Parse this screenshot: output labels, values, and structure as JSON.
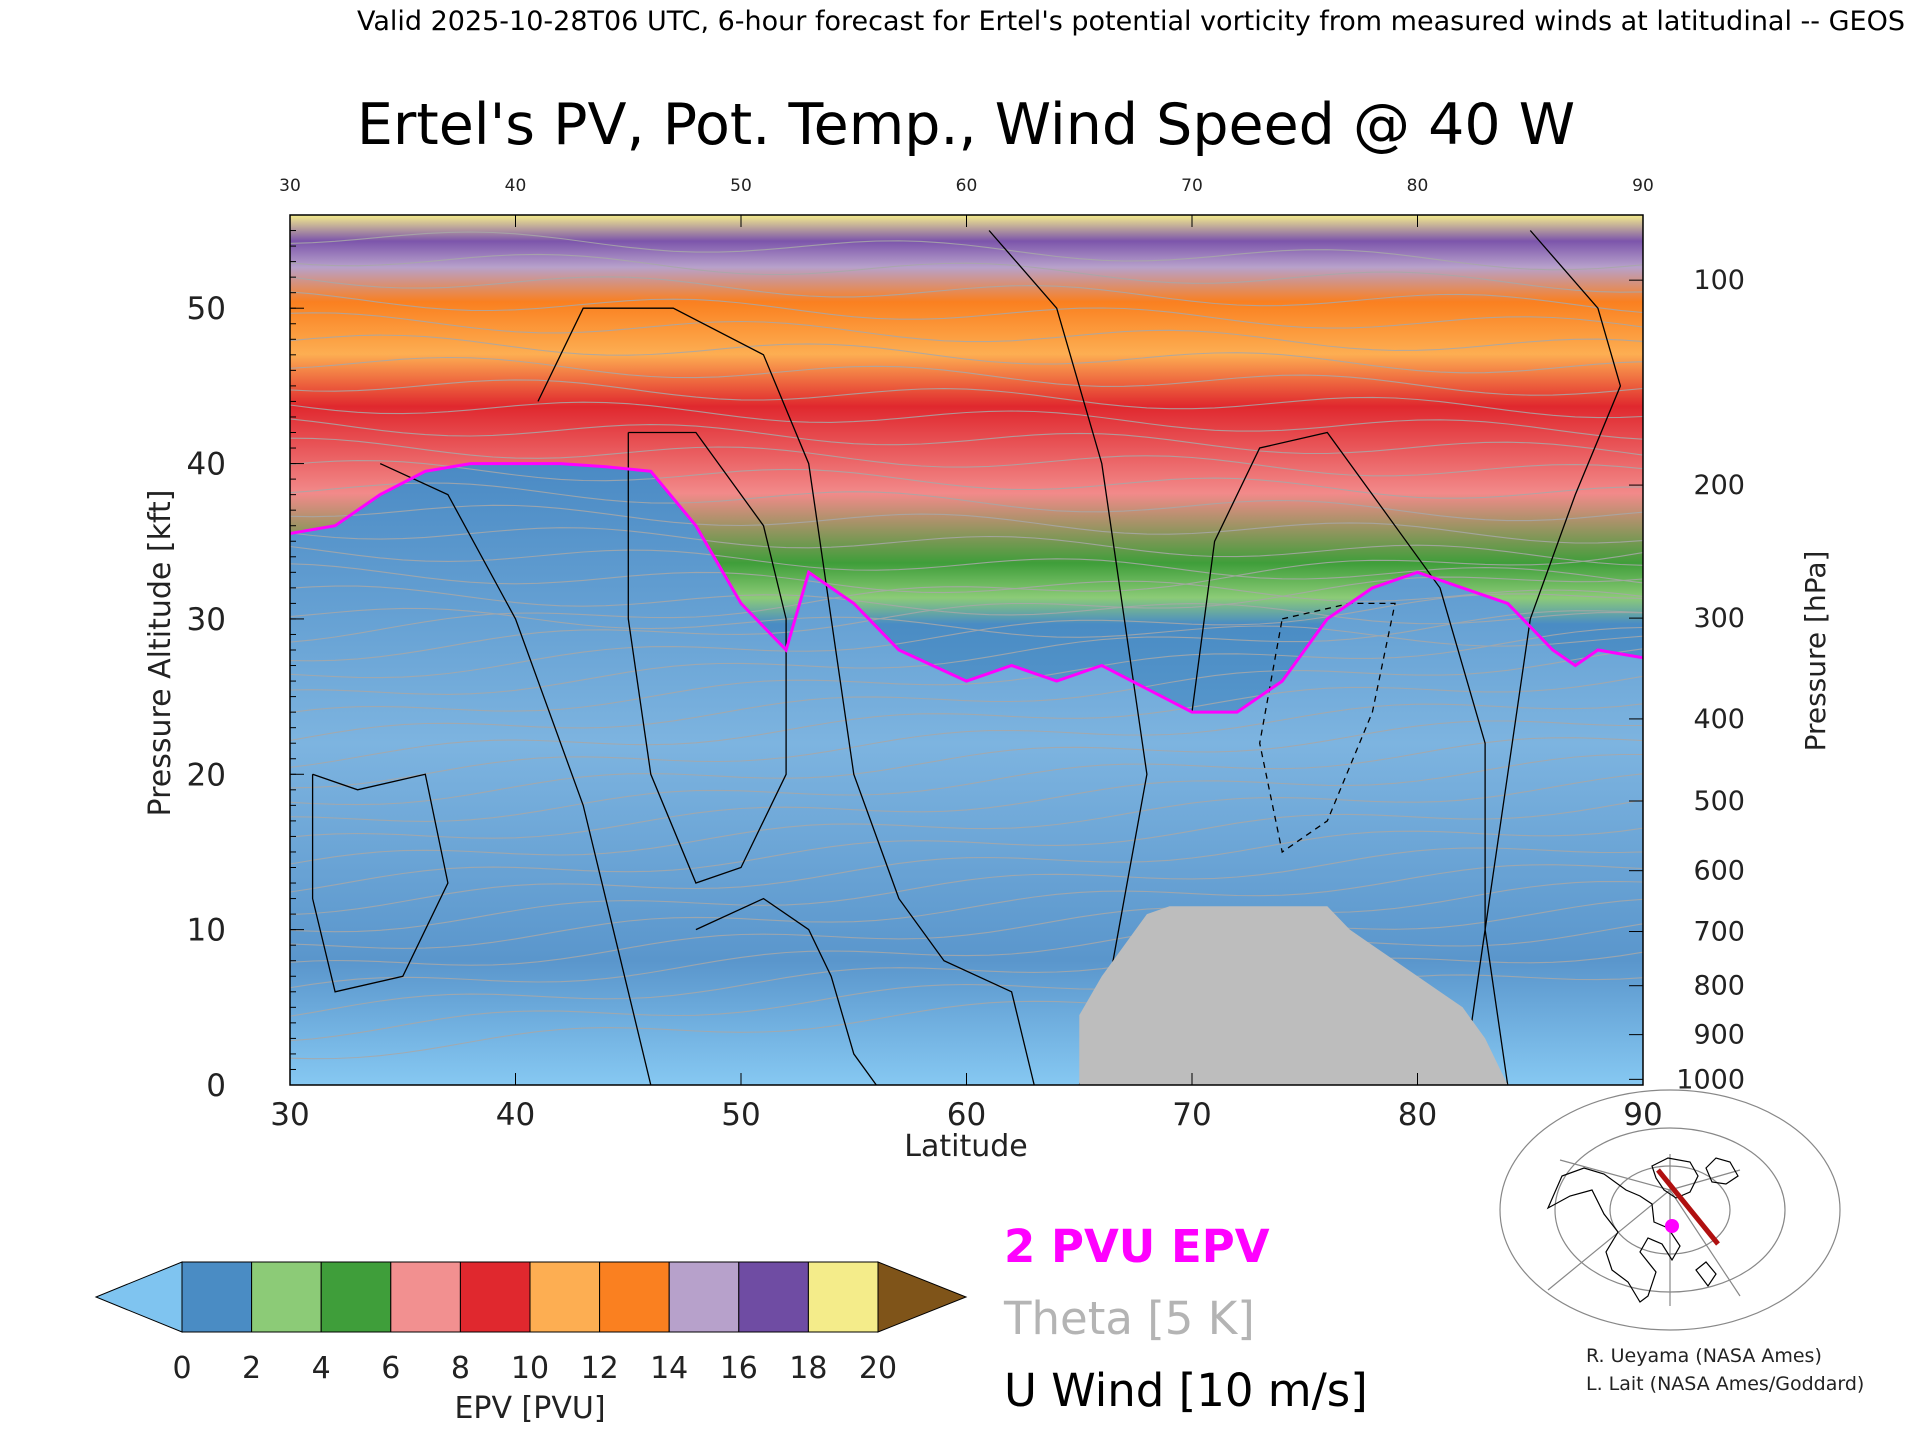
{
  "header": "Valid 2025-10-28T06 UTC, 6-hour forecast for Ertel's potential vorticity from measured winds at latitudinal -- GEOS",
  "chart_data": {
    "type": "heatmap",
    "title": "Ertel's PV, Pot. Temp., Wind Speed @ 40 W",
    "xlabel": "Latitude",
    "ylabel": "Pressure Altitude [kft]",
    "y2label": "Pressure [hPa]",
    "xlim": [
      30,
      90
    ],
    "ylim": [
      0,
      56
    ],
    "x_ticks": [
      "30",
      "40",
      "50",
      "60",
      "70",
      "80",
      "90"
    ],
    "top_x_ticks": [
      "30",
      "40",
      "50",
      "60",
      "70",
      "80",
      "90"
    ],
    "y_ticks": [
      "0",
      "10",
      "20",
      "30",
      "40",
      "50"
    ],
    "pressure_ticks": [
      {
        "hpa": 1000,
        "label": "1000"
      },
      {
        "hpa": 900,
        "label": "900"
      },
      {
        "hpa": 800,
        "label": "800"
      },
      {
        "hpa": 700,
        "label": "700"
      },
      {
        "hpa": 600,
        "label": "600"
      },
      {
        "hpa": 500,
        "label": "500"
      },
      {
        "hpa": 400,
        "label": "400"
      },
      {
        "hpa": 300,
        "label": "300"
      },
      {
        "hpa": 200,
        "label": "200"
      },
      {
        "hpa": 100,
        "label": "100"
      }
    ],
    "tropopause_2pvu_kft": [
      [
        30,
        35.5
      ],
      [
        32,
        36
      ],
      [
        34,
        38
      ],
      [
        36,
        39.5
      ],
      [
        38,
        40
      ],
      [
        40,
        40
      ],
      [
        42,
        40
      ],
      [
        44,
        39.8
      ],
      [
        46,
        39.5
      ],
      [
        48,
        36
      ],
      [
        50,
        31
      ],
      [
        52,
        28
      ],
      [
        53,
        33
      ],
      [
        55,
        31
      ],
      [
        57,
        28
      ],
      [
        60,
        26
      ],
      [
        62,
        27
      ],
      [
        64,
        26
      ],
      [
        66,
        27
      ],
      [
        68,
        25.5
      ],
      [
        70,
        24
      ],
      [
        72,
        24
      ],
      [
        74,
        26
      ],
      [
        76,
        30
      ],
      [
        78,
        32
      ],
      [
        80,
        33
      ],
      [
        82,
        32
      ],
      [
        84,
        31
      ],
      [
        86,
        28
      ],
      [
        87,
        27
      ],
      [
        88,
        28
      ],
      [
        90,
        27.5
      ]
    ],
    "terrain_mask": [
      [
        65,
        4.5
      ],
      [
        66,
        7
      ],
      [
        67,
        9
      ],
      [
        68,
        11
      ],
      [
        69,
        11.5
      ],
      [
        76,
        11.5
      ],
      [
        77,
        10
      ],
      [
        78,
        9
      ],
      [
        79,
        8
      ],
      [
        80,
        7
      ],
      [
        81,
        6
      ],
      [
        82,
        5
      ],
      [
        83,
        3
      ],
      [
        84,
        0
      ]
    ],
    "colorbar": {
      "label": "EPV [PVU]",
      "ticks": [
        "0",
        "2",
        "4",
        "6",
        "8",
        "10",
        "12",
        "14",
        "16",
        "18",
        "20"
      ],
      "colors": [
        "#4a8cc4",
        "#8ccb77",
        "#3f9e3a",
        "#f29090",
        "#e0282e",
        "#fdae52",
        "#fa8020",
        "#b7a1cb",
        "#6f4ca3",
        "#f4ec8a"
      ],
      "under_color": "#7fc4f0",
      "over_color": "#7f5419"
    }
  },
  "legend": {
    "epv_contour": "2 PVU EPV",
    "epv_color": "#ff00ff",
    "theta": "Theta [5 K]",
    "theta_color": "#b4b4b4",
    "uwind": "U Wind [10 m/s]"
  },
  "credits": {
    "line1": "R. Ueyama (NASA Ames)",
    "line2": "L. Lait (NASA Ames/Goddard)"
  },
  "inset_map": {
    "route_color": "#b01010",
    "marker_color": "#ff00ff"
  }
}
